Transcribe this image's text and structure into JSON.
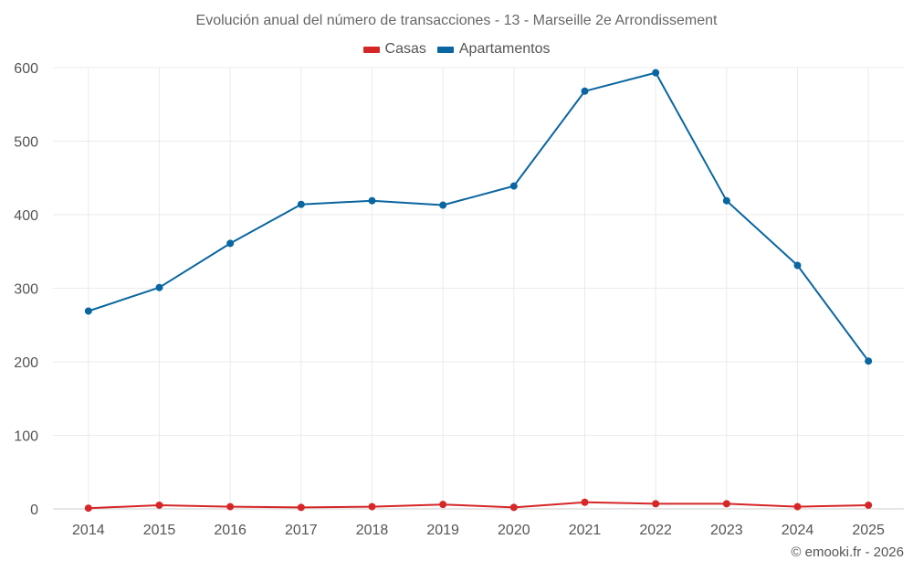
{
  "chart_data": {
    "type": "line",
    "title": "Evolución anual del número de transacciones - 13 - Marseille 2e Arrondissement",
    "xlabel": "",
    "ylabel": "",
    "categories": [
      "2014",
      "2015",
      "2016",
      "2017",
      "2018",
      "2019",
      "2020",
      "2021",
      "2022",
      "2023",
      "2024",
      "2025"
    ],
    "ylim": [
      0,
      600
    ],
    "yticks": [
      0,
      100,
      200,
      300,
      400,
      500,
      600
    ],
    "grid": true,
    "legend_position": "top-center",
    "series": [
      {
        "name": "Casas",
        "color": "#d62728",
        "values": [
          1,
          5,
          3,
          2,
          3,
          6,
          2,
          9,
          7,
          7,
          3,
          5
        ]
      },
      {
        "name": "Apartamentos",
        "color": "#0a66a0",
        "values": [
          269,
          301,
          361,
          414,
          419,
          413,
          439,
          568,
          593,
          419,
          331,
          201
        ]
      }
    ]
  },
  "credit": "© emooki.fr - 2026"
}
